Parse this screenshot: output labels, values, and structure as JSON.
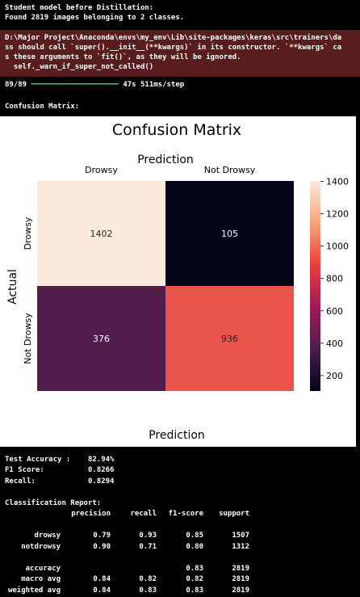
{
  "log": {
    "line1": "Student model before Distillation:",
    "line2": "Found 2819 images belonging to 2 classes."
  },
  "warning": {
    "lines": [
      "D:\\Major Project\\Anaconda\\envs\\my_env\\Lib\\site-packages\\keras\\src\\trainers\\da",
      "ss should call `super().__init__(**kwargs)` in its constructor. `**kwargs` ca",
      "s these arguments to `fit()`, as they will be ignored.",
      "  self._warn_if_super_not_called()"
    ]
  },
  "progress": {
    "steps": "89/89",
    "bar": "━━━━━━━━━━━━━━━━━━━━",
    "time": "47s 511ms/step"
  },
  "confusion_label": "Confusion Matrix:",
  "colors": {
    "warning_bg": "#5a1d1d",
    "progress_bar": "#33cc66"
  },
  "chart_data": {
    "type": "heatmap",
    "title": "Confusion Matrix",
    "xlabel": "Prediction",
    "xlabel_bottom": "Prediction",
    "ylabel": "Actual",
    "x_categories": [
      "Drowsy",
      "Not Drowsy"
    ],
    "y_categories": [
      "Drowsy",
      "Not Drowsy"
    ],
    "values": [
      [
        1402,
        105
      ],
      [
        376,
        936
      ]
    ],
    "colorbar": {
      "ticks": [
        200,
        400,
        600,
        800,
        1000,
        1200,
        1400
      ],
      "range": [
        105,
        1402
      ]
    }
  },
  "metrics": {
    "accuracy_label": "Test Accuracy :",
    "accuracy_value": "82.94%",
    "f1_label": "F1 Score:",
    "f1_value": "0.8266",
    "recall_label": "Recall:",
    "recall_value": "0.8294"
  },
  "report": {
    "title": "Classification Report:",
    "headers": [
      "precision",
      "recall",
      "f1-score",
      "support"
    ],
    "rows": [
      {
        "label": "drowsy",
        "values": [
          "0.79",
          "0.93",
          "0.85",
          "1507"
        ]
      },
      {
        "label": "notdrowsy",
        "values": [
          "0.90",
          "0.71",
          "0.80",
          "1312"
        ]
      },
      {
        "label": "accuracy",
        "values": [
          "",
          "",
          "0.83",
          "2819"
        ]
      },
      {
        "label": "macro avg",
        "values": [
          "0.84",
          "0.82",
          "0.82",
          "2819"
        ]
      },
      {
        "label": "weighted avg",
        "values": [
          "0.84",
          "0.83",
          "0.83",
          "2819"
        ]
      }
    ]
  }
}
